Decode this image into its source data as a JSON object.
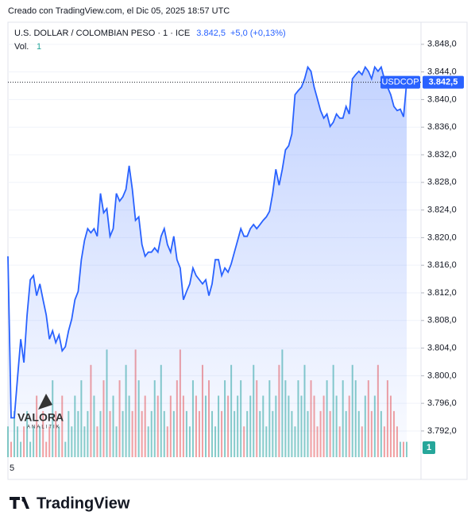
{
  "header": {
    "text": "Creado con TradingView.com, el Dic 05, 2025 18:57 UTC"
  },
  "watermark": {
    "name": "VALORA",
    "sub": "ANALITIK"
  },
  "footer": {
    "brand": "TradingView"
  },
  "chart_data": {
    "type": "line",
    "title": "U.S. DOLLAR / COLOMBIAN PESO · 1 · ICE",
    "change_label": "+5,0 (+0,13%)",
    "symbol": "USDCOP",
    "categories": [
      "5",
      null,
      null,
      null,
      null,
      null,
      null,
      null,
      null,
      null,
      null,
      null,
      null,
      null,
      null,
      null,
      null,
      null,
      null,
      null,
      null,
      null,
      null,
      null,
      null,
      null,
      null,
      null,
      null,
      null,
      null,
      null,
      null,
      null,
      null,
      null,
      null,
      null,
      null,
      null,
      null,
      null,
      null,
      null,
      null,
      null,
      null,
      null,
      null,
      null,
      null,
      null,
      null,
      null,
      null,
      null,
      null,
      null,
      null,
      null,
      null,
      null,
      null,
      null,
      null,
      null,
      null,
      null,
      null,
      null,
      null,
      null,
      null,
      null,
      null,
      null,
      null,
      null,
      null,
      null,
      null,
      null,
      null,
      null,
      null,
      null,
      null,
      null,
      null,
      null,
      null,
      null,
      null,
      null,
      null,
      null,
      null,
      null,
      null,
      null,
      null,
      null,
      null,
      null,
      null,
      null,
      null,
      null,
      null,
      null,
      null,
      null,
      null,
      null,
      null,
      null,
      null,
      null,
      null,
      null,
      null,
      null,
      null,
      null,
      null,
      null
    ],
    "series": [
      {
        "name": "USDCOP",
        "color": "#2962ff",
        "last_value_label": "3.842,5",
        "values": [
          3817.3,
          3793.9,
          3793.9,
          3799.6,
          3805.3,
          3801.9,
          3808.8,
          3813.9,
          3814.5,
          3811.6,
          3813.3,
          3811.0,
          3808.8,
          3805.3,
          3806.5,
          3804.8,
          3805.9,
          3803.6,
          3804.2,
          3806.5,
          3808.2,
          3811.0,
          3812.2,
          3816.8,
          3819.6,
          3821.3,
          3820.7,
          3821.3,
          3820.2,
          3826.4,
          3823.6,
          3824.2,
          3820.2,
          3821.3,
          3826.4,
          3825.3,
          3825.9,
          3827.0,
          3830.4,
          3827.0,
          3822.5,
          3823.0,
          3819.0,
          3817.3,
          3817.9,
          3817.9,
          3818.5,
          3817.9,
          3820.2,
          3821.3,
          3819.0,
          3817.9,
          3820.2,
          3816.8,
          3815.6,
          3811.0,
          3812.2,
          3813.3,
          3815.6,
          3814.5,
          3813.9,
          3813.3,
          3813.9,
          3811.6,
          3813.3,
          3816.8,
          3816.8,
          3814.5,
          3815.6,
          3815.0,
          3816.2,
          3817.9,
          3819.6,
          3821.3,
          3820.2,
          3820.2,
          3821.3,
          3821.9,
          3821.3,
          3821.9,
          3822.5,
          3823.0,
          3823.8,
          3826.4,
          3829.9,
          3827.6,
          3829.9,
          3832.7,
          3833.3,
          3835.0,
          3840.7,
          3841.3,
          3841.8,
          3843.0,
          3844.7,
          3844.1,
          3841.8,
          3840.1,
          3838.4,
          3837.3,
          3837.9,
          3836.1,
          3836.7,
          3837.9,
          3837.3,
          3837.3,
          3839.0,
          3837.9,
          3843.0,
          3843.6,
          3844.1,
          3843.6,
          3844.7,
          3844.1,
          3843.0,
          3844.7,
          3844.1,
          3844.7,
          3843.0,
          3841.8,
          3840.7,
          3839.0,
          3838.4,
          3838.6,
          3837.5,
          3842.5
        ]
      },
      {
        "name": "Vol.",
        "type": "bar",
        "axis": "y2",
        "up_color": "#26a69a",
        "down_color": "#ef5350",
        "values": [
          2,
          1,
          3,
          2,
          1,
          2,
          3,
          1,
          2,
          4,
          2,
          3,
          1,
          2,
          5,
          3,
          2,
          4,
          1,
          3,
          2,
          4,
          3,
          5,
          2,
          3,
          6,
          4,
          2,
          3,
          5,
          7,
          3,
          4,
          2,
          5,
          3,
          6,
          4,
          3,
          7,
          5,
          3,
          4,
          2,
          3,
          5,
          4,
          6,
          3,
          2,
          4,
          3,
          5,
          7,
          4,
          3,
          2,
          5,
          4,
          3,
          6,
          4,
          5,
          3,
          2,
          4,
          3,
          5,
          4,
          6,
          3,
          4,
          5,
          2,
          3,
          4,
          6,
          5,
          3,
          4,
          2,
          5,
          3,
          4,
          6,
          7,
          5,
          4,
          3,
          2,
          5,
          4,
          6,
          3,
          5,
          4,
          2,
          3,
          4,
          5,
          3,
          6,
          4,
          2,
          5,
          3,
          4,
          6,
          5,
          3,
          2,
          4,
          5,
          3,
          4,
          6,
          3,
          2,
          5,
          4,
          3,
          2,
          1,
          1,
          1
        ]
      }
    ],
    "ylim": [
      3788.2,
      3851.2
    ],
    "yticks": [
      {
        "value": 3848,
        "label": "3.848,0"
      },
      {
        "value": 3844,
        "label": "3.844,0"
      },
      {
        "value": 3840,
        "label": "3.840,0"
      },
      {
        "value": 3836,
        "label": "3.836,0"
      },
      {
        "value": 3832,
        "label": "3.832,0"
      },
      {
        "value": 3828,
        "label": "3.828,0"
      },
      {
        "value": 3824,
        "label": "3.824,0"
      },
      {
        "value": 3820,
        "label": "3.820,0"
      },
      {
        "value": 3816,
        "label": "3.816,0"
      },
      {
        "value": 3812,
        "label": "3.812,0"
      },
      {
        "value": 3808,
        "label": "3.808,0"
      },
      {
        "value": 3804,
        "label": "3.804,0"
      },
      {
        "value": 3800,
        "label": "3.800,0"
      },
      {
        "value": 3796,
        "label": "3.796,0"
      },
      {
        "value": 3792,
        "label": "3.792,0"
      }
    ],
    "y2lim": [
      0,
      8
    ],
    "grid": true
  }
}
